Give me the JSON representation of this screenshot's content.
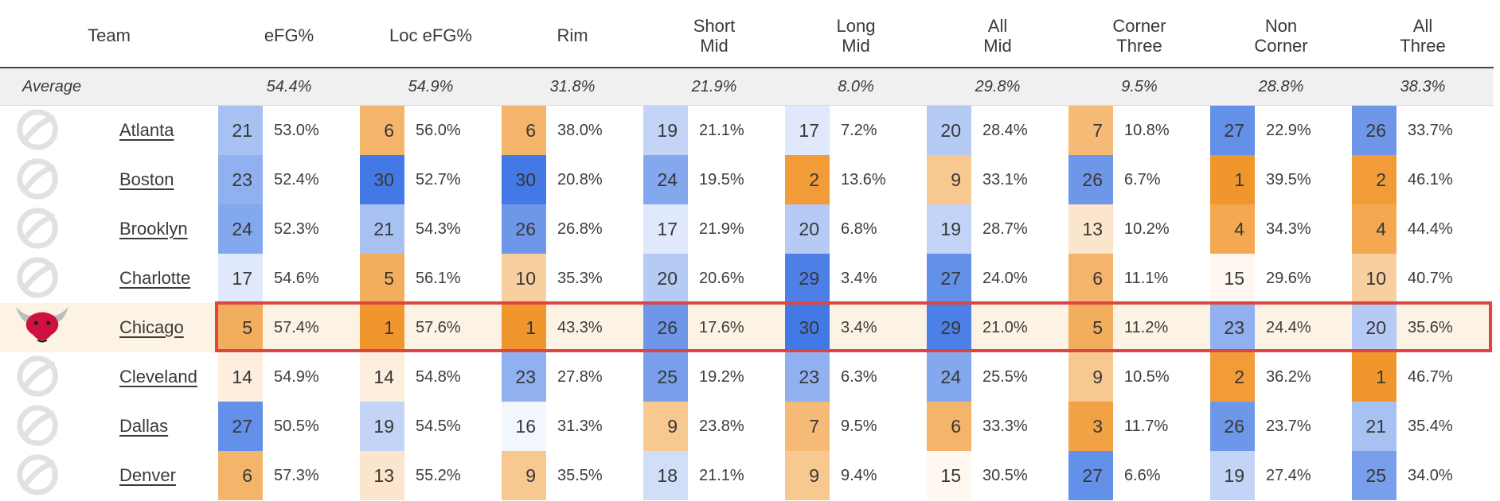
{
  "table": {
    "columns": [
      "Team",
      "eFG%",
      "Loc eFG%",
      "Rim",
      "Short\nMid",
      "Long\nMid",
      "All\nMid",
      "Corner\nThree",
      "Non\nCorner",
      "All\nThree"
    ],
    "average": {
      "label": "Average",
      "values": [
        "54.4%",
        "54.9%",
        "31.8%",
        "21.9%",
        "8.0%",
        "29.8%",
        "9.5%",
        "28.8%",
        "38.3%"
      ]
    },
    "teams": [
      {
        "name": "Atlanta",
        "highlight": false,
        "stats": [
          [
            21,
            "53.0%"
          ],
          [
            6,
            "56.0%"
          ],
          [
            6,
            "38.0%"
          ],
          [
            19,
            "21.1%"
          ],
          [
            17,
            "7.2%"
          ],
          [
            20,
            "28.4%"
          ],
          [
            7,
            "10.8%"
          ],
          [
            27,
            "22.9%"
          ],
          [
            26,
            "33.7%"
          ]
        ]
      },
      {
        "name": "Boston",
        "highlight": false,
        "stats": [
          [
            23,
            "52.4%"
          ],
          [
            30,
            "52.7%"
          ],
          [
            30,
            "20.8%"
          ],
          [
            24,
            "19.5%"
          ],
          [
            2,
            "13.6%"
          ],
          [
            9,
            "33.1%"
          ],
          [
            26,
            "6.7%"
          ],
          [
            1,
            "39.5%"
          ],
          [
            2,
            "46.1%"
          ]
        ]
      },
      {
        "name": "Brooklyn",
        "highlight": false,
        "stats": [
          [
            24,
            "52.3%"
          ],
          [
            21,
            "54.3%"
          ],
          [
            26,
            "26.8%"
          ],
          [
            17,
            "21.9%"
          ],
          [
            20,
            "6.8%"
          ],
          [
            19,
            "28.7%"
          ],
          [
            13,
            "10.2%"
          ],
          [
            4,
            "34.3%"
          ],
          [
            4,
            "44.4%"
          ]
        ]
      },
      {
        "name": "Charlotte",
        "highlight": false,
        "stats": [
          [
            17,
            "54.6%"
          ],
          [
            5,
            "56.1%"
          ],
          [
            10,
            "35.3%"
          ],
          [
            20,
            "20.6%"
          ],
          [
            29,
            "3.4%"
          ],
          [
            27,
            "24.0%"
          ],
          [
            6,
            "11.1%"
          ],
          [
            15,
            "29.6%"
          ],
          [
            10,
            "40.7%"
          ]
        ]
      },
      {
        "name": "Chicago",
        "highlight": true,
        "stats": [
          [
            5,
            "57.4%"
          ],
          [
            1,
            "57.6%"
          ],
          [
            1,
            "43.3%"
          ],
          [
            26,
            "17.6%"
          ],
          [
            30,
            "3.4%"
          ],
          [
            29,
            "21.0%"
          ],
          [
            5,
            "11.2%"
          ],
          [
            23,
            "24.4%"
          ],
          [
            20,
            "35.6%"
          ]
        ]
      },
      {
        "name": "Cleveland",
        "highlight": false,
        "stats": [
          [
            14,
            "54.9%"
          ],
          [
            14,
            "54.8%"
          ],
          [
            23,
            "27.8%"
          ],
          [
            25,
            "19.2%"
          ],
          [
            23,
            "6.3%"
          ],
          [
            24,
            "25.5%"
          ],
          [
            9,
            "10.5%"
          ],
          [
            2,
            "36.2%"
          ],
          [
            1,
            "46.7%"
          ]
        ]
      },
      {
        "name": "Dallas",
        "highlight": false,
        "stats": [
          [
            27,
            "50.5%"
          ],
          [
            19,
            "54.5%"
          ],
          [
            16,
            "31.3%"
          ],
          [
            9,
            "23.8%"
          ],
          [
            7,
            "9.5%"
          ],
          [
            6,
            "33.3%"
          ],
          [
            3,
            "11.7%"
          ],
          [
            26,
            "23.7%"
          ],
          [
            21,
            "35.4%"
          ]
        ]
      },
      {
        "name": "Denver",
        "highlight": false,
        "stats": [
          [
            6,
            "57.3%"
          ],
          [
            13,
            "55.2%"
          ],
          [
            9,
            "35.5%"
          ],
          [
            18,
            "21.1%"
          ],
          [
            9,
            "9.4%"
          ],
          [
            15,
            "30.5%"
          ],
          [
            27,
            "6.6%"
          ],
          [
            19,
            "27.4%"
          ],
          [
            25,
            "34.0%"
          ]
        ]
      }
    ]
  },
  "colors": {
    "rank_best_orange": "#F0962D",
    "rank_worst_blue": "#4379E4",
    "rank_mid_white": "#FFFFFF",
    "highlight_border": "#DB4542",
    "highlight_row_bg": "#FCF3E4",
    "average_row_bg": "#F0F0F0",
    "header_rule": "#454545",
    "text": "#3C3C3C",
    "bulls_red": "#CE1141",
    "faded_logo_gray": "#D7D7D7"
  }
}
